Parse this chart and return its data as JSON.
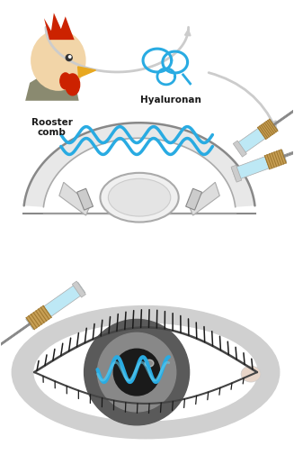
{
  "background_color": "#ffffff",
  "rooster_label": "Rooster\ncomb",
  "hyaluronan_label": "Hyaluronan",
  "label_fontsize": 7.5,
  "blue_color": "#29ABE2",
  "gray_light": "#CCCCCC",
  "gray_mid": "#AAAAAA",
  "gray_dark": "#888888",
  "needle_color": "#C8A055",
  "syringe_blue": "#ADD8E6",
  "syringe_blue2": "#BDE8F5",
  "rooster_body_color": "#F2D5A8",
  "rooster_red": "#CC2200",
  "rooster_beak": "#E8A820",
  "rooster_gray": "#8A8A70"
}
